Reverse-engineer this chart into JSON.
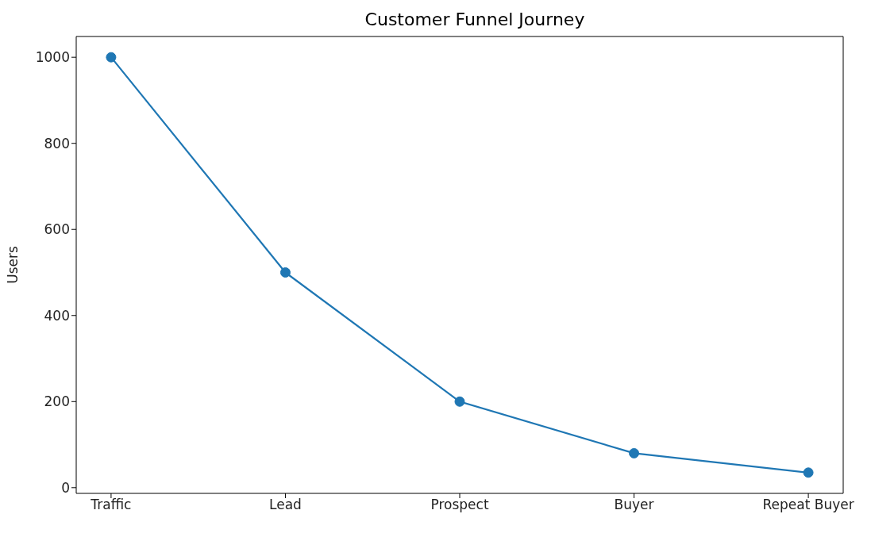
{
  "chart_data": {
    "type": "line",
    "title": "Customer Funnel Journey",
    "ylabel": "Users",
    "categories": [
      "Traffic",
      "Lead",
      "Prospect",
      "Buyer",
      "Repeat Buyer"
    ],
    "series": [
      {
        "color": "#1f77b4",
        "values": [
          1000,
          500,
          200,
          80,
          35
        ]
      }
    ],
    "ylim": [
      -13.25,
      1048.25
    ],
    "yticks": [
      0,
      200,
      400,
      600,
      800,
      1000
    ],
    "marker": "circle",
    "grid": false,
    "legend": false
  }
}
